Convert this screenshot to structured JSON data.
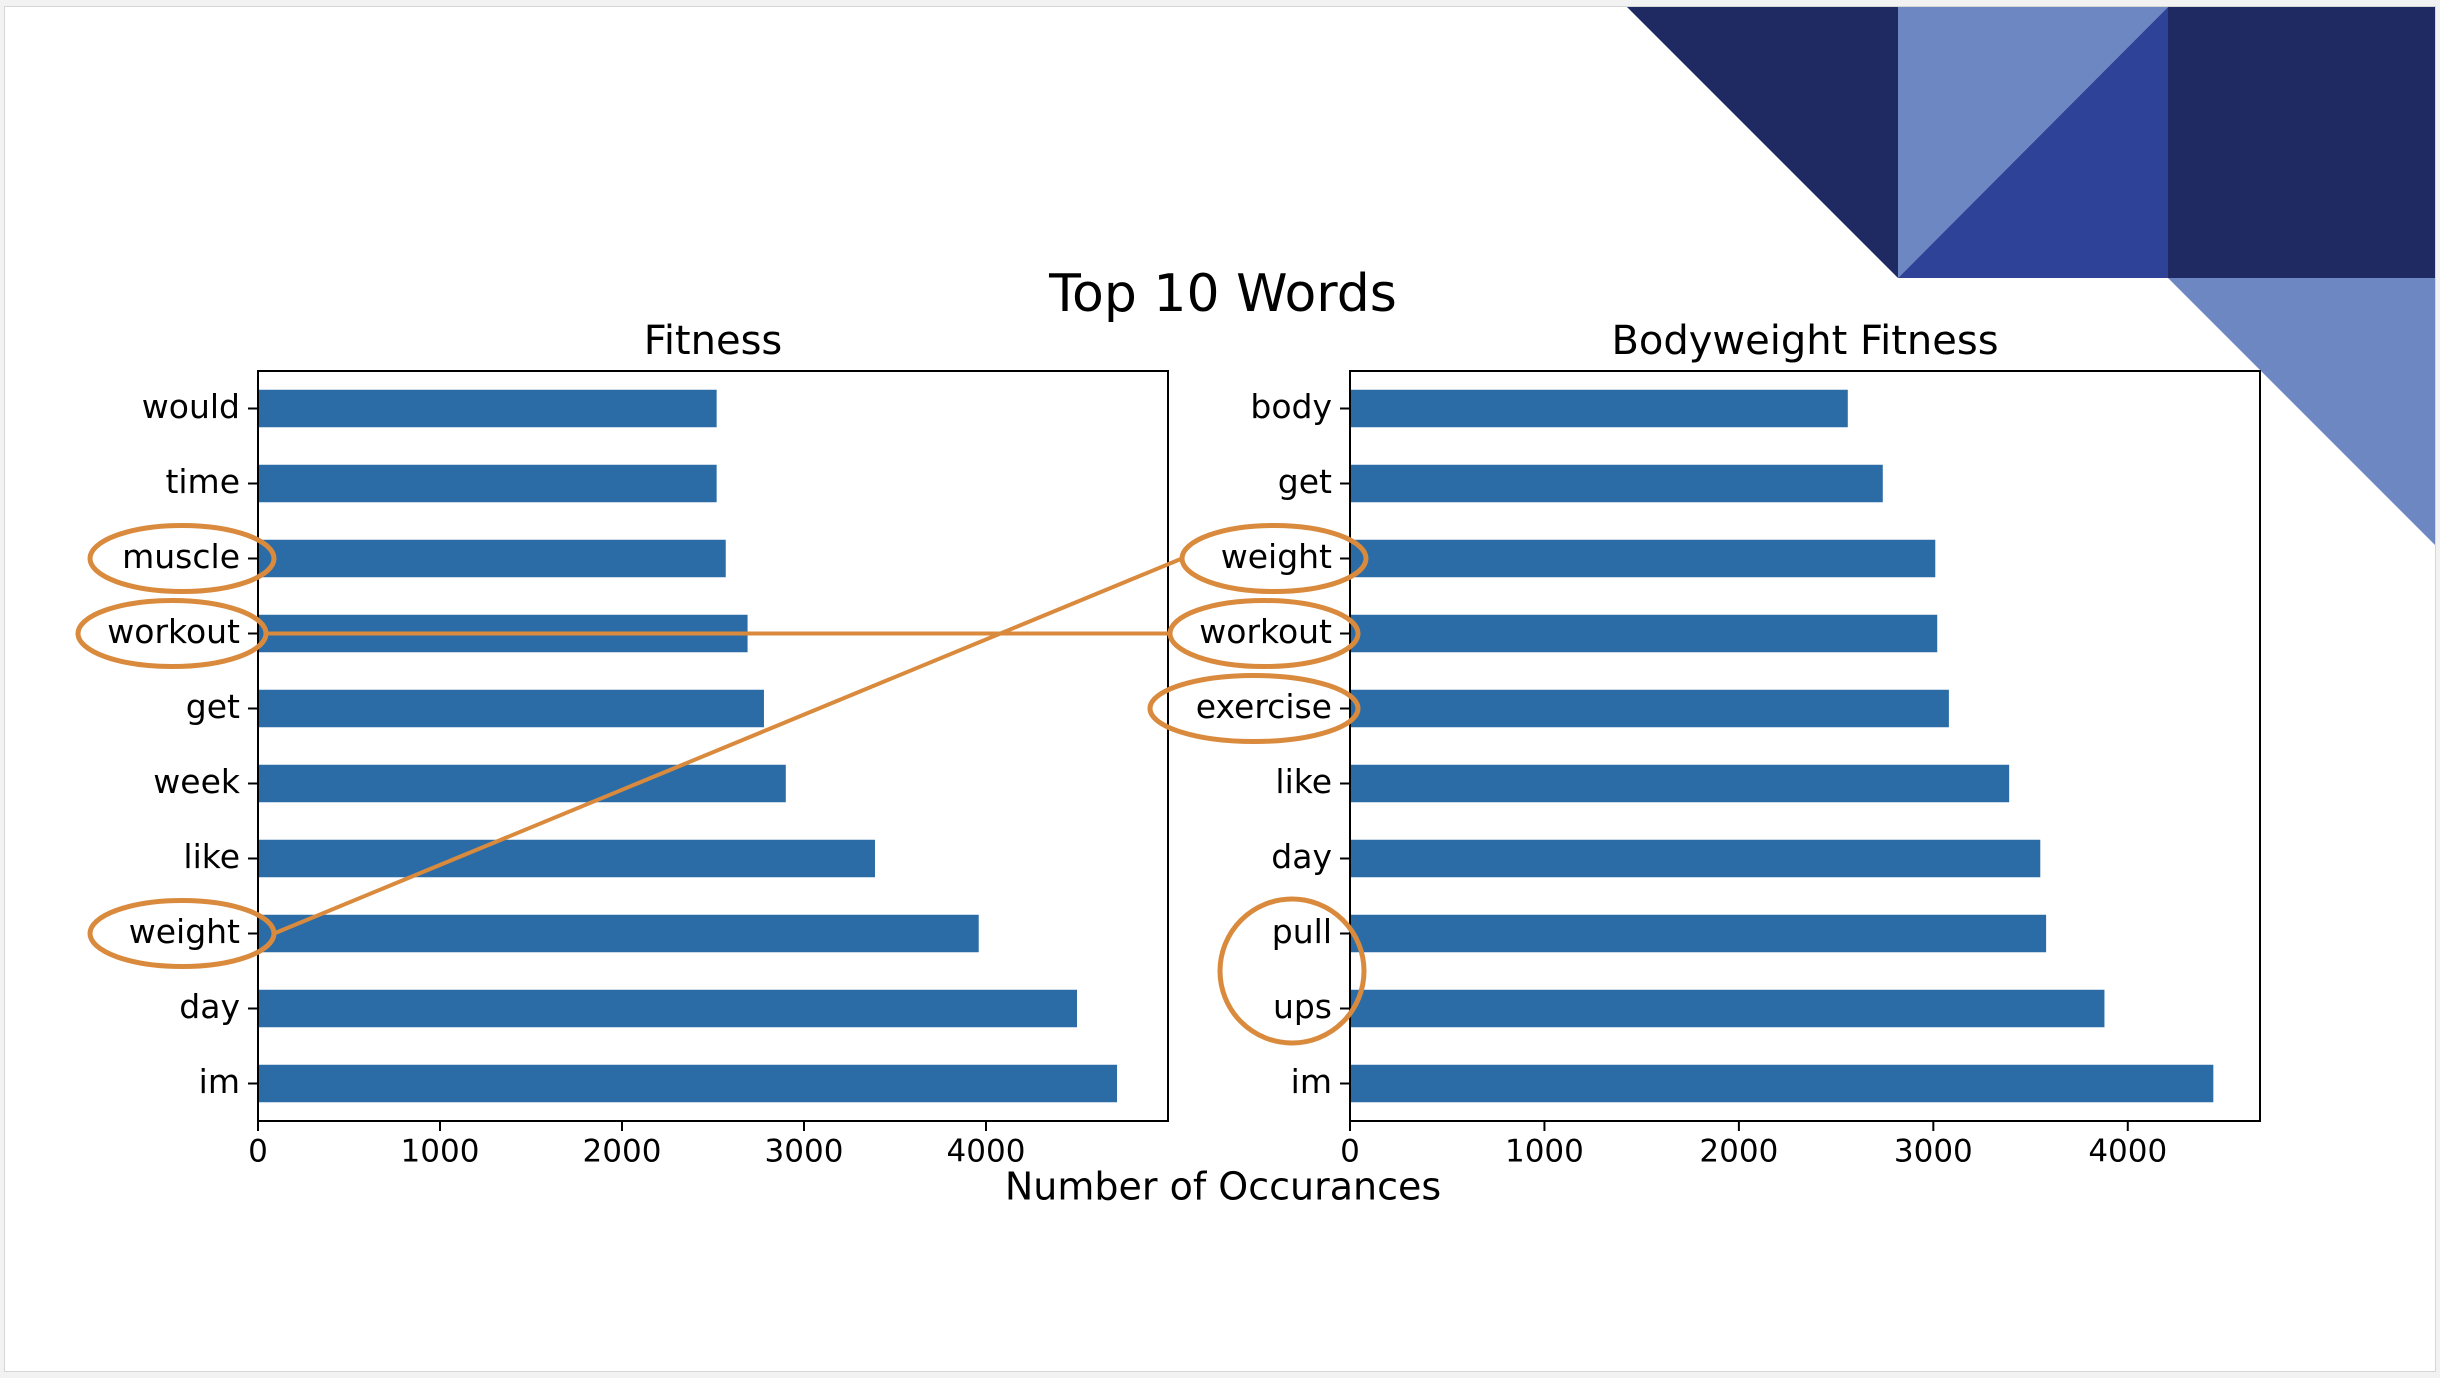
{
  "colors": {
    "bar": "#2b6ca6",
    "highlight": "#d98a3d",
    "deco_dark": "#1f2a63",
    "deco_mid": "#2e4297",
    "deco_light": "#6d87c3",
    "text": "#000000"
  },
  "chart_data": {
    "title": "Top 10 Words",
    "xlabel": "Number of Occurances",
    "charts": [
      {
        "type": "bar",
        "orientation": "horizontal",
        "title": "Fitness",
        "categories": [
          "would",
          "time",
          "muscle",
          "workout",
          "get",
          "week",
          "like",
          "weight",
          "day",
          "im"
        ],
        "values": [
          2520,
          2520,
          2570,
          2690,
          2780,
          2900,
          3390,
          3960,
          4500,
          4720
        ],
        "xlim": [
          0,
          5000
        ],
        "xticks": [
          0,
          1000,
          2000,
          3000,
          4000
        ],
        "xtick_labels": [
          "0",
          "1000",
          "2000",
          "3000",
          "4000"
        ],
        "highlighted": [
          "muscle",
          "workout",
          "weight"
        ]
      },
      {
        "type": "bar",
        "orientation": "horizontal",
        "title": "Bodyweight Fitness",
        "categories": [
          "body",
          "get",
          "weight",
          "workout",
          "exercise",
          "like",
          "day",
          "pull",
          "ups",
          "im"
        ],
        "values": [
          2560,
          2740,
          3010,
          3020,
          3080,
          3390,
          3550,
          3580,
          3880,
          4440
        ],
        "xlim": [
          0,
          4680
        ],
        "xticks": [
          0,
          1000,
          2000,
          3000,
          4000
        ],
        "xtick_labels": [
          "0",
          "1000",
          "2000",
          "3000",
          "4000"
        ],
        "highlighted": [
          "weight",
          "workout",
          "exercise",
          "pull",
          "ups"
        ]
      }
    ],
    "annotations": [
      {
        "type": "connector",
        "from": "Fitness:workout",
        "to": "Bodyweight Fitness:workout"
      },
      {
        "type": "connector",
        "from": "Fitness:weight",
        "to": "Bodyweight Fitness:weight"
      },
      {
        "type": "group-circle",
        "items": [
          "Bodyweight Fitness:pull",
          "Bodyweight Fitness:ups"
        ]
      }
    ]
  }
}
